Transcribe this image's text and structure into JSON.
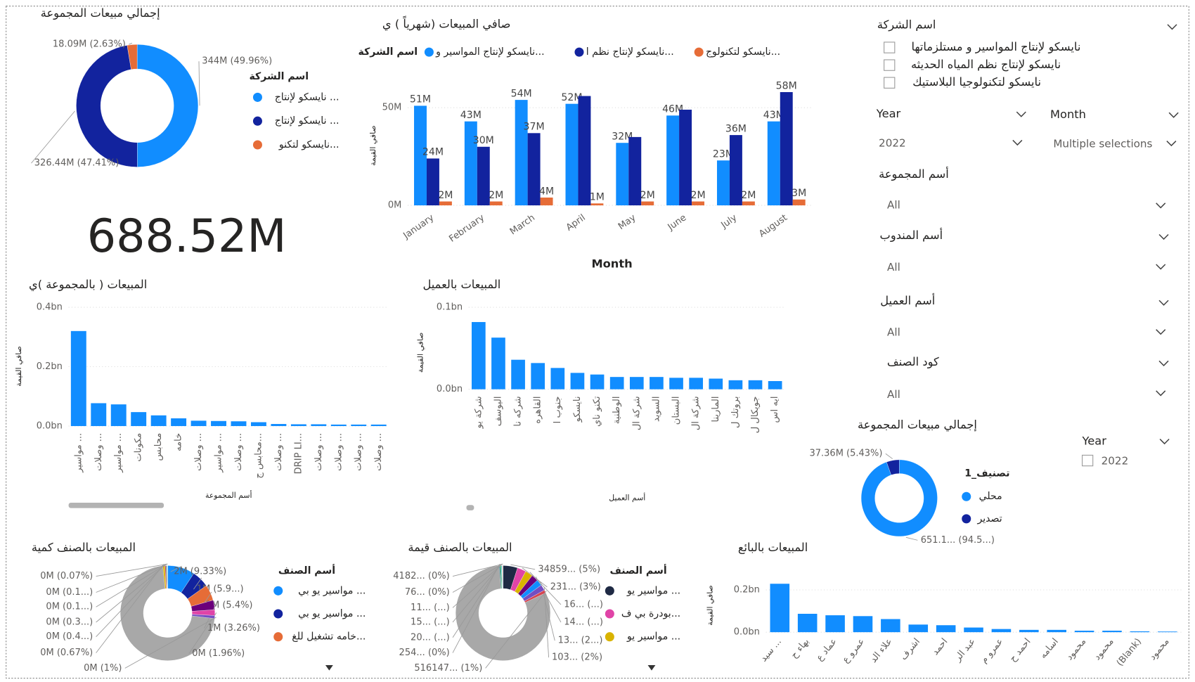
{
  "chart_data": [
    {
      "type": "donut",
      "title": "إجمالي مبيعات المجموعة",
      "legend_title": "اسم الشركة",
      "categories": [
        "نايسكو لإنتاج ...",
        "نايسكو لإنتاج ...",
        "نايسكو لتكنو..."
      ],
      "values": [
        344,
        326.44,
        18.09
      ],
      "value_labels": [
        "344M (49.96%)",
        "326.44M (47.41%)",
        "18.09M (2.63%)"
      ],
      "colors": [
        "#118dff",
        "#12239e",
        "#e66c37"
      ]
    },
    {
      "type": "card",
      "values": [
        688.52
      ],
      "value_labels": [
        "688.52M"
      ]
    },
    {
      "type": "bar",
      "title": "صافي المبيعات (شهرياً ) ي",
      "legend_title": "اسم الشركة",
      "x_label": "Month",
      "y_label": "صافي القيمة",
      "categories": [
        "January",
        "February",
        "March",
        "April",
        "May",
        "June",
        "July",
        "August"
      ],
      "series": [
        {
          "name": "نايسكو لإنتاج المواسير و...",
          "color": "#118dff",
          "values": [
            51,
            43,
            54,
            52,
            32,
            46,
            23,
            43
          ],
          "value_labels": [
            "51M",
            "43M",
            "54M",
            "52M",
            "32M",
            "46M",
            "23M",
            "43M"
          ]
        },
        {
          "name": "نايسكو لإنتاج نظم ا...",
          "color": "#12239e",
          "values": [
            24,
            30,
            37,
            56,
            35,
            49,
            36,
            58
          ],
          "value_labels": [
            "24M",
            "30M",
            "37M",
            null,
            null,
            null,
            "36M",
            "58M"
          ]
        },
        {
          "name": "نايسكو لتكنولوج...",
          "color": "#e66c37",
          "values": [
            2,
            2,
            4,
            1,
            2,
            2,
            2,
            3
          ],
          "value_labels": [
            "2M",
            "2M",
            "4M",
            "1M",
            "2M",
            "2M",
            "2M",
            "3M"
          ]
        }
      ],
      "ylim": [
        0,
        62
      ],
      "yticks": [
        {
          "value": 0,
          "label": "0M"
        },
        {
          "value": 50,
          "label": "50M"
        }
      ],
      "grid": true
    },
    {
      "type": "bar",
      "title": "المبيعات ( بالمجموعة )ي",
      "x_label": "أسم المجموعة",
      "y_label": "صافي القيمة",
      "categories": [
        "مواسير ...",
        "وصلات ...",
        "مواسير ...",
        "مكونات",
        "محابس",
        "خامه",
        "وصلات ...",
        "مواسير ...",
        "وصلات ...",
        "محابس ج...",
        "وصلات ...",
        "DRIP LI...",
        "وصلات ...",
        "وصلات ...",
        "وصلات ...",
        "وصلات ..."
      ],
      "values": [
        0.32,
        0.077,
        0.073,
        0.047,
        0.036,
        0.026,
        0.018,
        0.017,
        0.016,
        0.013,
        0.007,
        0.006,
        0.006,
        0.005,
        0.005,
        0.005
      ],
      "color": "#118dff",
      "ylim": [
        0,
        0.4
      ],
      "yticks": [
        {
          "value": 0,
          "label": "0.0bn"
        },
        {
          "value": 0.2,
          "label": "0.2bn"
        },
        {
          "value": 0.4,
          "label": "0.4bn"
        }
      ],
      "grid": true
    },
    {
      "type": "bar",
      "title": "المبيعات بالعميل",
      "x_label": "أسم العميل",
      "y_label": "صافي القيمة",
      "categories": [
        "شركة يو",
        "اليوسف",
        "شركه نا",
        "القاهره",
        "جنوب ا",
        "نايسكو",
        "تكنو ناي",
        "الوطنية",
        "شركة ال",
        "السويد",
        "البستان",
        "شركة ال",
        "المارينا",
        "بروتك ل",
        "جويكال ل",
        "ايه اس"
      ],
      "values": [
        0.082,
        0.063,
        0.036,
        0.032,
        0.026,
        0.02,
        0.018,
        0.015,
        0.015,
        0.015,
        0.014,
        0.014,
        0.013,
        0.011,
        0.011,
        0.01
      ],
      "color": "#118dff",
      "ylim": [
        0,
        0.1
      ],
      "yticks": [
        {
          "value": 0,
          "label": "0.0bn"
        },
        {
          "value": 0.1,
          "label": "0.1bn"
        }
      ],
      "grid": true
    },
    {
      "type": "donut",
      "title": "إجمالي مبيعات المجموعة",
      "legend_title": "تصنيف_1",
      "categories": [
        "محلي",
        "تصدير"
      ],
      "values": [
        651.16,
        37.36
      ],
      "value_labels": [
        "651.1... (94.5...)",
        "37.36M (5.43%)"
      ],
      "colors": [
        "#118dff",
        "#12239e"
      ]
    },
    {
      "type": "donut",
      "title": "المبيعات بالصنف كمية",
      "legend_title": "أسم الصنف",
      "categories": [
        "مواسير يو بي ...",
        "مواسير يو بي ...",
        "خامه تشغيل للغ...",
        null,
        null,
        null,
        null,
        null,
        null,
        null,
        null,
        null
      ],
      "values": [
        9.33,
        5.9,
        5.4,
        3.26,
        1.96,
        1,
        0.67,
        0.4,
        0.3,
        0.1,
        0.1,
        0.07
      ],
      "value_labels": [
        "2M (9.33%)",
        "1M (5.9...)",
        "1M (5.4%)",
        "1M (3.26%)",
        "0M (1.96%)",
        "0M (1%)",
        "0M (0.67%)",
        "0M (0.4...)",
        "0M (0.3...)",
        "0M (0.1...)",
        "0M (0.1...)",
        "0M (0.07%)"
      ],
      "colors": [
        "#118dff",
        "#12239e",
        "#e66c37",
        "#6b007b",
        "#e044a7",
        "#744ec2",
        "#d9b300",
        "#d64550",
        "#197278",
        "#1aab40",
        "#15c6f4",
        "#4092ff"
      ]
    },
    {
      "type": "donut",
      "title": "المبيعات بالصنف قيمة",
      "legend_title": "أسم الصنف",
      "categories": [
        "مواسير يو ...",
        "بودرة بي ف...",
        "مواسير يو ...",
        null,
        null,
        null,
        null,
        null,
        null,
        null,
        null,
        null,
        null
      ],
      "values": [
        5,
        3,
        2.6,
        2.3,
        2.1,
        2,
        1,
        0.4,
        0.3,
        0.25,
        0.2,
        0.1,
        0.05
      ],
      "value_labels": [
        "34859... (5%)",
        "231... (3%)",
        "16... (...)",
        "14... (...)",
        "13... (2...)",
        "103... (2%)",
        "516147... (1%)",
        "254... (0%)",
        "20... (...)",
        "15... (...)",
        "11... (...)",
        "76... (0%)",
        "4182... (0%)"
      ],
      "colors": [
        "#1f2a44",
        "#e044a7",
        "#d9b300",
        "#6b007b",
        "#118dff",
        "#744ec2",
        "#d64550",
        "#197278",
        "#1aab40",
        "#15c6f4",
        "#e66c37",
        "#4092ff",
        "#a0d1ff"
      ]
    },
    {
      "type": "bar",
      "title": "المبيعات بالبائع",
      "y_label": "صافي القيمة",
      "categories": [
        "سيد ...",
        "بهاء ح",
        "عماد ع",
        "عمرو ع",
        "علاء الد",
        "اشرف",
        "احمد",
        "عبد الر",
        "عمرو م",
        "احمد ح",
        "اسامه",
        "محمود",
        "محمود",
        "(Blank)",
        "محمود"
      ],
      "values": [
        0.229,
        0.087,
        0.08,
        0.076,
        0.062,
        0.036,
        0.033,
        0.022,
        0.015,
        0.011,
        0.011,
        0.007,
        0.007,
        0.004,
        0.003
      ],
      "color": "#118dff",
      "ylim": [
        0,
        0.25
      ],
      "yticks": [
        {
          "value": 0,
          "label": "0.0bn"
        },
        {
          "value": 0.2,
          "label": "0.2bn"
        }
      ],
      "grid": true
    }
  ],
  "slicers": [
    {
      "title": "اسم الشركة",
      "items": [
        "نايسكو لإنتاج المواسير و مستلزماتها",
        "نايسكو لإنتاج نظم المياه الحديثه",
        "نايسكو لتكنولوجيا البلاستيك"
      ]
    },
    {
      "title": "Year",
      "value": "2022"
    },
    {
      "title": "Month",
      "value": "Multiple selections"
    },
    {
      "title": "أسم المجموعة",
      "value": "All"
    },
    {
      "title": "أسم المندوب",
      "value": "All"
    },
    {
      "title": "أسم العميل",
      "value": "All"
    },
    {
      "title": "كود الصنف",
      "value": "All"
    },
    {
      "title": "Year",
      "items": [
        "2022"
      ]
    }
  ]
}
